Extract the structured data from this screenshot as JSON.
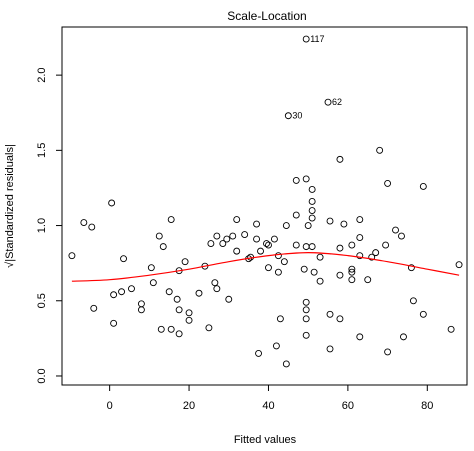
{
  "chart_data": {
    "type": "scatter",
    "title": "Scale-Location",
    "xlabel": "Fitted values",
    "ylabel": "√|Standardized residuals|",
    "xlim": [
      -12,
      90
    ],
    "ylim": [
      -0.06,
      2.32
    ],
    "xticks": [
      0,
      20,
      40,
      60,
      80
    ],
    "yticks": [
      0.0,
      0.5,
      1.0,
      1.5,
      2.0
    ],
    "xtick_labels": [
      "0",
      "20",
      "40",
      "60",
      "80"
    ],
    "ytick_labels": [
      "0.0",
      "0.5",
      "1.0",
      "1.5",
      "2.0"
    ],
    "grid": false,
    "point_style": "open-circle",
    "smooth_color": "#ff0000",
    "points": [
      {
        "x": -9.5,
        "y": 0.8
      },
      {
        "x": -6.5,
        "y": 1.02
      },
      {
        "x": -4.5,
        "y": 0.99
      },
      {
        "x": -4.0,
        "y": 0.45
      },
      {
        "x": 0.5,
        "y": 1.15
      },
      {
        "x": 1.0,
        "y": 0.35
      },
      {
        "x": 1.0,
        "y": 0.54
      },
      {
        "x": 3.0,
        "y": 0.56
      },
      {
        "x": 3.5,
        "y": 0.78
      },
      {
        "x": 5.5,
        "y": 0.58
      },
      {
        "x": 8.0,
        "y": 0.48
      },
      {
        "x": 8.0,
        "y": 0.44
      },
      {
        "x": 10.5,
        "y": 0.72
      },
      {
        "x": 11.0,
        "y": 0.62
      },
      {
        "x": 12.5,
        "y": 0.93
      },
      {
        "x": 13.0,
        "y": 0.31
      },
      {
        "x": 13.5,
        "y": 0.86
      },
      {
        "x": 15.0,
        "y": 0.56
      },
      {
        "x": 15.5,
        "y": 1.04
      },
      {
        "x": 15.5,
        "y": 0.31
      },
      {
        "x": 17.0,
        "y": 0.51
      },
      {
        "x": 17.5,
        "y": 0.44
      },
      {
        "x": 17.5,
        "y": 0.28
      },
      {
        "x": 17.5,
        "y": 0.7
      },
      {
        "x": 19.0,
        "y": 0.76
      },
      {
        "x": 20.0,
        "y": 0.42
      },
      {
        "x": 20.0,
        "y": 0.37
      },
      {
        "x": 22.5,
        "y": 0.55
      },
      {
        "x": 24.0,
        "y": 0.73
      },
      {
        "x": 25.0,
        "y": 0.32
      },
      {
        "x": 25.5,
        "y": 0.88
      },
      {
        "x": 26.5,
        "y": 0.62
      },
      {
        "x": 27.0,
        "y": 0.58
      },
      {
        "x": 27.0,
        "y": 0.93
      },
      {
        "x": 28.5,
        "y": 0.88
      },
      {
        "x": 29.5,
        "y": 0.91
      },
      {
        "x": 30.0,
        "y": 0.51
      },
      {
        "x": 31.0,
        "y": 0.93
      },
      {
        "x": 32.0,
        "y": 0.83
      },
      {
        "x": 32.0,
        "y": 1.04
      },
      {
        "x": 34.0,
        "y": 0.94
      },
      {
        "x": 35.0,
        "y": 0.78
      },
      {
        "x": 35.5,
        "y": 0.79
      },
      {
        "x": 37.0,
        "y": 1.01
      },
      {
        "x": 37.0,
        "y": 0.91
      },
      {
        "x": 37.5,
        "y": 0.15
      },
      {
        "x": 38.0,
        "y": 0.83
      },
      {
        "x": 39.5,
        "y": 0.88
      },
      {
        "x": 40.0,
        "y": 0.87
      },
      {
        "x": 40.0,
        "y": 0.72
      },
      {
        "x": 41.5,
        "y": 0.91
      },
      {
        "x": 42.0,
        "y": 0.2
      },
      {
        "x": 42.5,
        "y": 0.69
      },
      {
        "x": 42.5,
        "y": 0.8
      },
      {
        "x": 43.0,
        "y": 0.38
      },
      {
        "x": 44.0,
        "y": 0.76
      },
      {
        "x": 44.5,
        "y": 1.0
      },
      {
        "x": 44.5,
        "y": 0.08
      },
      {
        "x": 45.0,
        "y": 1.73
      },
      {
        "x": 47.0,
        "y": 1.07
      },
      {
        "x": 47.0,
        "y": 0.87
      },
      {
        "x": 47.0,
        "y": 1.3
      },
      {
        "x": 49.0,
        "y": 0.71
      },
      {
        "x": 49.5,
        "y": 2.24
      },
      {
        "x": 49.5,
        "y": 0.44
      },
      {
        "x": 49.5,
        "y": 0.49
      },
      {
        "x": 49.5,
        "y": 0.38
      },
      {
        "x": 49.5,
        "y": 0.27
      },
      {
        "x": 49.5,
        "y": 0.86
      },
      {
        "x": 49.5,
        "y": 1.31
      },
      {
        "x": 50.0,
        "y": 1.0
      },
      {
        "x": 51.0,
        "y": 1.24
      },
      {
        "x": 51.0,
        "y": 1.16
      },
      {
        "x": 51.0,
        "y": 1.1
      },
      {
        "x": 51.0,
        "y": 1.05
      },
      {
        "x": 51.0,
        "y": 0.86
      },
      {
        "x": 51.5,
        "y": 0.69
      },
      {
        "x": 53.0,
        "y": 0.63
      },
      {
        "x": 53.0,
        "y": 0.79
      },
      {
        "x": 55.0,
        "y": 1.82
      },
      {
        "x": 55.5,
        "y": 1.03
      },
      {
        "x": 55.5,
        "y": 0.41
      },
      {
        "x": 55.5,
        "y": 0.18
      },
      {
        "x": 58.0,
        "y": 1.44
      },
      {
        "x": 58.0,
        "y": 0.67
      },
      {
        "x": 58.0,
        "y": 0.38
      },
      {
        "x": 58.0,
        "y": 0.85
      },
      {
        "x": 59.0,
        "y": 1.01
      },
      {
        "x": 61.0,
        "y": 0.87
      },
      {
        "x": 61.0,
        "y": 0.71
      },
      {
        "x": 61.0,
        "y": 0.69
      },
      {
        "x": 61.0,
        "y": 0.64
      },
      {
        "x": 63.0,
        "y": 1.04
      },
      {
        "x": 63.0,
        "y": 0.92
      },
      {
        "x": 63.0,
        "y": 0.8
      },
      {
        "x": 63.0,
        "y": 0.26
      },
      {
        "x": 65.0,
        "y": 0.64
      },
      {
        "x": 66.0,
        "y": 0.79
      },
      {
        "x": 67.0,
        "y": 0.82
      },
      {
        "x": 68.0,
        "y": 1.5
      },
      {
        "x": 69.5,
        "y": 0.87
      },
      {
        "x": 70.0,
        "y": 1.28
      },
      {
        "x": 70.0,
        "y": 0.16
      },
      {
        "x": 72.0,
        "y": 0.97
      },
      {
        "x": 73.5,
        "y": 0.93
      },
      {
        "x": 74.0,
        "y": 0.26
      },
      {
        "x": 76.0,
        "y": 0.72
      },
      {
        "x": 76.5,
        "y": 0.5
      },
      {
        "x": 79.0,
        "y": 1.26
      },
      {
        "x": 79.0,
        "y": 0.41
      },
      {
        "x": 86.0,
        "y": 0.31
      },
      {
        "x": 88.0,
        "y": 0.74
      }
    ],
    "labeled_points": [
      {
        "label": "117",
        "x": 49.5,
        "y": 2.24
      },
      {
        "label": "62",
        "x": 55.0,
        "y": 1.82
      },
      {
        "label": "30",
        "x": 45.0,
        "y": 1.73
      }
    ],
    "smooth_line": [
      {
        "x": -9.5,
        "y": 0.63
      },
      {
        "x": 0,
        "y": 0.64
      },
      {
        "x": 10,
        "y": 0.67
      },
      {
        "x": 20,
        "y": 0.71
      },
      {
        "x": 30,
        "y": 0.76
      },
      {
        "x": 40,
        "y": 0.8
      },
      {
        "x": 50,
        "y": 0.82
      },
      {
        "x": 60,
        "y": 0.8
      },
      {
        "x": 70,
        "y": 0.76
      },
      {
        "x": 80,
        "y": 0.71
      },
      {
        "x": 88,
        "y": 0.67
      }
    ]
  }
}
